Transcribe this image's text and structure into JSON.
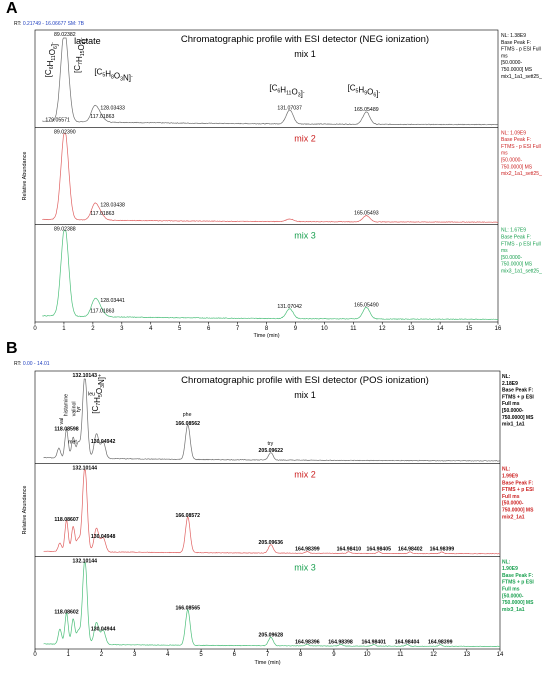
{
  "panels": [
    {
      "letter": "A",
      "rt_label": "RT: ",
      "rt_value": "0.21749 - 16.06677  SM: 7B",
      "title": "Chromatographic profile with ESI detector (NEG ionization)",
      "x_axis_label": "Time (min)",
      "y_axis_label": "Relative Abundance",
      "xlim": [
        0,
        16
      ],
      "xticks": [
        0,
        1,
        2,
        3,
        4,
        5,
        6,
        7,
        8,
        9,
        10,
        11,
        12,
        13,
        14,
        15,
        16
      ],
      "side_bold": false,
      "compound_labels": [
        {
          "text": "lactate",
          "x": 1.35,
          "y": 93,
          "rot": false
        },
        {
          "text": "[C6H11O6]-",
          "x": 0.55,
          "y": 55,
          "rot": true
        },
        {
          "text": "[C7H15O4]-",
          "x": 1.55,
          "y": 60,
          "rot": true
        },
        {
          "text": "[C5H8O3N]-",
          "x": 2.05,
          "y": 58,
          "rot": false
        },
        {
          "text": "[C6H11O3]-",
          "x": 8.1,
          "y": 40,
          "rot": false
        },
        {
          "text": "[C5H9O6]-",
          "x": 10.8,
          "y": 40,
          "rot": false
        }
      ],
      "traces": [
        {
          "label": "mix 1",
          "color": "#000000",
          "line_color": "#707070",
          "side": [
            "NL: 1.38E9",
            "Base Peak F:",
            "FTMS - p ESI Full",
            "ms",
            "[50.0000-",
            "750.0000]  MS",
            "mix1_1a1_sett25_"
          ],
          "baseline": 4,
          "noise": 0.8,
          "peaks": [
            {
              "x": 1.03,
              "y": 100,
              "w": 0.13,
              "label": "89.02382"
            },
            {
              "x": 0.92,
              "y": 8,
              "w": 0.1,
              "label": "179.05571"
            },
            {
              "x": 2.05,
              "y": 13,
              "w": 0.12,
              "label": "117.01863"
            },
            {
              "x": 2.2,
              "y": 9,
              "w": 0.15,
              "label": "128.03433"
            },
            {
              "x": 8.8,
              "y": 16,
              "w": 0.12,
              "label": "131.07037"
            },
            {
              "x": 11.45,
              "y": 14,
              "w": 0.12,
              "label": "165.05489"
            }
          ]
        },
        {
          "label": "mix 2",
          "color": "#cc2222",
          "line_color": "#e06060",
          "side": [
            "NL: 1.09E9",
            "Base Peak F:",
            "FTMS - p ESI Full",
            "ms",
            "[50.0000-",
            "750.0000]  MS",
            "mix2_1a1_sett25_"
          ],
          "baseline": 3,
          "noise": 0.6,
          "peaks": [
            {
              "x": 1.03,
              "y": 100,
              "w": 0.13,
              "label": "89.02390"
            },
            {
              "x": 2.05,
              "y": 13,
              "w": 0.12,
              "label": "117.01863"
            },
            {
              "x": 2.2,
              "y": 9,
              "w": 0.15,
              "label": "128.03438"
            },
            {
              "x": 8.8,
              "y": 3,
              "w": 0.12,
              "label": ""
            },
            {
              "x": 11.45,
              "y": 7,
              "w": 0.12,
              "label": "165.05493"
            }
          ]
        },
        {
          "label": "mix 3",
          "color": "#1aa050",
          "line_color": "#4cbf7a",
          "side": [
            "NL: 1.67E9",
            "Base Peak F:",
            "FTMS - p ESI Full",
            "ms",
            "[50.0000-",
            "750.0000]  MS",
            "mix3_1a1_sett25_"
          ],
          "baseline": 4,
          "noise": 0.7,
          "peaks": [
            {
              "x": 1.03,
              "y": 100,
              "w": 0.13,
              "label": "89.02388"
            },
            {
              "x": 2.05,
              "y": 13,
              "w": 0.12,
              "label": "117.01863"
            },
            {
              "x": 2.2,
              "y": 11,
              "w": 0.15,
              "label": "128.03441"
            },
            {
              "x": 8.8,
              "y": 11,
              "w": 0.12,
              "label": "131.07042"
            },
            {
              "x": 11.45,
              "y": 13,
              "w": 0.12,
              "label": "165.05490"
            }
          ]
        }
      ]
    },
    {
      "letter": "B",
      "rt_label": "RT: ",
      "rt_value": "0.00 - 14.01",
      "title": "Chromatographic profile with ESI detector (POS ionization)",
      "x_axis_label": "Time (min)",
      "y_axis_label": "Relative Abundance",
      "xlim": [
        0,
        14
      ],
      "xticks": [
        0,
        1,
        2,
        3,
        4,
        5,
        6,
        7,
        8,
        9,
        10,
        11,
        12,
        13,
        14
      ],
      "side_bold": true,
      "compound_labels": [
        {
          "text": "histamine",
          "x": 0.98,
          "y": 55,
          "rot": true
        },
        {
          "text": "valinol",
          "x": 1.22,
          "y": 55,
          "rot": true
        },
        {
          "text": "val",
          "x": 0.85,
          "y": 45,
          "rot": true
        },
        {
          "text": "tyr",
          "x": 1.35,
          "y": 60,
          "rot": true
        },
        {
          "text": "leu",
          "x": 1.6,
          "y": 80,
          "rot": false
        },
        {
          "text": "[C7H5O3N]+",
          "x": 1.9,
          "y": 58,
          "rot": true
        },
        {
          "text": "met",
          "x": 1.0,
          "y": 22,
          "rot": false
        },
        {
          "text": "phe",
          "x": 4.45,
          "y": 55,
          "rot": false
        },
        {
          "text": "try",
          "x": 7.0,
          "y": 20,
          "rot": false
        }
      ],
      "traces": [
        {
          "label": "mix 1",
          "color": "#000000",
          "line_color": "#707070",
          "side": [
            "NL:",
            "2.18E9",
            "Base Peak F:",
            "FTMS + p ESI",
            "Full ms",
            "[50.0000-",
            "750.0000]  MS",
            "mix1_1a1"
          ],
          "baseline": 4,
          "noise": 0.8,
          "peaks": [
            {
              "x": 0.72,
              "y": 12,
              "w": 0.05,
              "label": ""
            },
            {
              "x": 0.95,
              "y": 35,
              "w": 0.05,
              "label": "118.08598"
            },
            {
              "x": 1.15,
              "y": 25,
              "w": 0.05,
              "label": ""
            },
            {
              "x": 1.3,
              "y": 18,
              "w": 0.05,
              "label": ""
            },
            {
              "x": 1.5,
              "y": 100,
              "w": 0.07,
              "label": "132.10143"
            },
            {
              "x": 1.85,
              "y": 30,
              "w": 0.07,
              "label": ""
            },
            {
              "x": 2.05,
              "y": 20,
              "w": 0.07,
              "label": "130.04942"
            },
            {
              "x": 4.6,
              "y": 42,
              "w": 0.07,
              "label": "166.08562"
            },
            {
              "x": 7.1,
              "y": 9,
              "w": 0.07,
              "label": "205.09622"
            }
          ]
        },
        {
          "label": "mix 2",
          "color": "#cc2222",
          "line_color": "#e06060",
          "side": [
            "NL:",
            "1.99E9",
            "Base Peak F:",
            "FTMS + p ESI",
            "Full ms",
            "[50.0000-",
            "750.0000]  MS",
            "mix2_1a1"
          ],
          "baseline": 3,
          "noise": 0.6,
          "peaks": [
            {
              "x": 0.75,
              "y": 10,
              "w": 0.05,
              "label": ""
            },
            {
              "x": 0.95,
              "y": 37,
              "w": 0.05,
              "label": "118.08607"
            },
            {
              "x": 1.15,
              "y": 30,
              "w": 0.05,
              "label": ""
            },
            {
              "x": 1.3,
              "y": 14,
              "w": 0.05,
              "label": ""
            },
            {
              "x": 1.5,
              "y": 100,
              "w": 0.07,
              "label": "132.10144"
            },
            {
              "x": 1.85,
              "y": 28,
              "w": 0.07,
              "label": ""
            },
            {
              "x": 2.05,
              "y": 17,
              "w": 0.07,
              "label": "130.04948"
            },
            {
              "x": 4.6,
              "y": 42,
              "w": 0.07,
              "label": "166.08572"
            },
            {
              "x": 7.1,
              "y": 10,
              "w": 0.07,
              "label": "205.09636"
            },
            {
              "x": 8.2,
              "y": 2,
              "w": 0.05,
              "label": "164.98399"
            },
            {
              "x": 9.45,
              "y": 2,
              "w": 0.05,
              "label": "164.98410"
            },
            {
              "x": 10.35,
              "y": 2,
              "w": 0.05,
              "label": "164.98405"
            },
            {
              "x": 11.3,
              "y": 2,
              "w": 0.05,
              "label": "164.98402"
            },
            {
              "x": 12.25,
              "y": 2,
              "w": 0.05,
              "label": "164.98399"
            }
          ]
        },
        {
          "label": "mix 3",
          "color": "#1aa050",
          "line_color": "#4cbf7a",
          "side": [
            "NL:",
            "1.90E9",
            "Base Peak F:",
            "FTMS + p ESI",
            "Full ms",
            "[50.0000-",
            "750.0000]  MS",
            "mix3_1a1"
          ],
          "baseline": 3,
          "noise": 0.6,
          "peaks": [
            {
              "x": 0.75,
              "y": 18,
              "w": 0.05,
              "label": ""
            },
            {
              "x": 0.95,
              "y": 37,
              "w": 0.05,
              "label": "118.08602"
            },
            {
              "x": 1.15,
              "y": 30,
              "w": 0.05,
              "label": ""
            },
            {
              "x": 1.3,
              "y": 15,
              "w": 0.05,
              "label": ""
            },
            {
              "x": 1.5,
              "y": 100,
              "w": 0.07,
              "label": "132.10144"
            },
            {
              "x": 1.85,
              "y": 26,
              "w": 0.07,
              "label": ""
            },
            {
              "x": 2.05,
              "y": 17,
              "w": 0.07,
              "label": "130.04944"
            },
            {
              "x": 4.6,
              "y": 42,
              "w": 0.07,
              "label": "166.08565"
            },
            {
              "x": 7.1,
              "y": 10,
              "w": 0.07,
              "label": "205.09628"
            },
            {
              "x": 8.2,
              "y": 2,
              "w": 0.05,
              "label": "164.98396"
            },
            {
              "x": 9.2,
              "y": 2,
              "w": 0.05,
              "label": "164.98398"
            },
            {
              "x": 10.2,
              "y": 2,
              "w": 0.05,
              "label": "164.98401"
            },
            {
              "x": 11.2,
              "y": 2,
              "w": 0.05,
              "label": "164.98404"
            },
            {
              "x": 12.2,
              "y": 2,
              "w": 0.05,
              "label": "164.98399"
            }
          ]
        }
      ]
    }
  ]
}
